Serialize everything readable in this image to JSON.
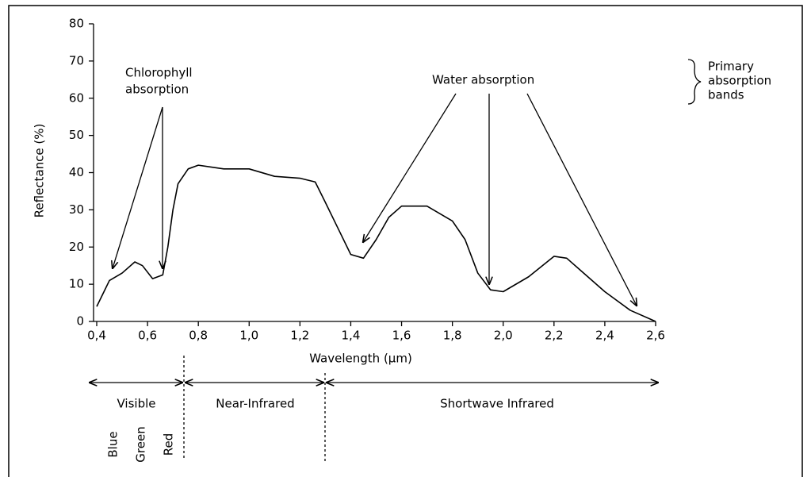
{
  "chart_data": {
    "type": "line",
    "xlabel": "Wavelength (µm)",
    "ylabel": "Reflectance (%)",
    "x": [
      0.4,
      0.45,
      0.5,
      0.55,
      0.58,
      0.62,
      0.66,
      0.68,
      0.7,
      0.72,
      0.76,
      0.8,
      0.9,
      1.0,
      1.1,
      1.2,
      1.26,
      1.3,
      1.35,
      1.4,
      1.45,
      1.5,
      1.55,
      1.6,
      1.7,
      1.8,
      1.85,
      1.9,
      1.95,
      2.0,
      2.1,
      2.2,
      2.25,
      2.3,
      2.4,
      2.5,
      2.6
    ],
    "series": [
      {
        "color": "#000000",
        "values": [
          4,
          11,
          13,
          16,
          15,
          11.5,
          12.5,
          20,
          30,
          37,
          41,
          42,
          41,
          41,
          39,
          38.5,
          37.5,
          32,
          25,
          18,
          17,
          22,
          28,
          31,
          31,
          27,
          22,
          13,
          8.5,
          8,
          12,
          17.5,
          17,
          14,
          8,
          3,
          0
        ]
      }
    ],
    "xlim": [
      0.4,
      2.6
    ],
    "ylim": [
      0,
      80
    ],
    "xticks": [
      {
        "value": 0.4,
        "label": "0,4"
      },
      {
        "value": 0.6,
        "label": "0,6"
      },
      {
        "value": 0.8,
        "label": "0,8"
      },
      {
        "value": 1.0,
        "label": "1,0"
      },
      {
        "value": 1.2,
        "label": "1,2"
      },
      {
        "value": 1.4,
        "label": "1,4"
      },
      {
        "value": 1.6,
        "label": "1,6"
      },
      {
        "value": 1.8,
        "label": "1,8"
      },
      {
        "value": 2.0,
        "label": "2,0"
      },
      {
        "value": 2.2,
        "label": "2,2"
      },
      {
        "value": 2.4,
        "label": "2,4"
      },
      {
        "value": 2.6,
        "label": "2,6"
      }
    ],
    "yticks": [
      0,
      10,
      20,
      30,
      40,
      50,
      60,
      70,
      80
    ],
    "grid": false,
    "chlorophyll_label": [
      "Chlorophyll",
      "absorption"
    ],
    "water_label": "Water absorption",
    "legend_label": [
      "Primary",
      "absorption",
      "bands"
    ],
    "regions": [
      "Visible",
      "Near-Infrared",
      "Shortwave Infrared"
    ],
    "sub_bands": [
      "Blue",
      "Green",
      "Red"
    ]
  }
}
